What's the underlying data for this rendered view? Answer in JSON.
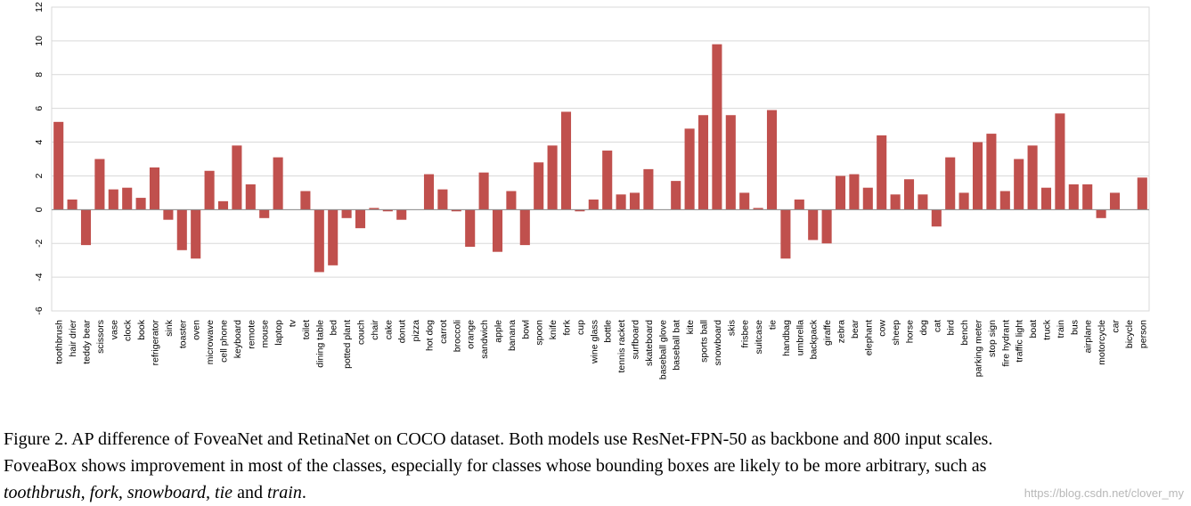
{
  "chart_data": {
    "type": "bar",
    "title": "",
    "xlabel": "",
    "ylabel": "",
    "ylim": [
      -6,
      12
    ],
    "yticks": [
      -6,
      -4,
      -2,
      0,
      2,
      4,
      6,
      8,
      10,
      12
    ],
    "grid": "horizontal",
    "bar_color": "#c0504d",
    "categories": [
      "toothbrush",
      "hair drier",
      "teddy bear",
      "scissors",
      "vase",
      "clock",
      "book",
      "refrigerator",
      "sink",
      "toaster",
      "oven",
      "microwave",
      "cell phone",
      "keyboard",
      "remote",
      "mouse",
      "laptop",
      "tv",
      "toilet",
      "dining table",
      "bed",
      "potted plant",
      "couch",
      "chair",
      "cake",
      "donut",
      "pizza",
      "hot dog",
      "carrot",
      "broccoli",
      "orange",
      "sandwich",
      "apple",
      "banana",
      "bowl",
      "spoon",
      "knife",
      "fork",
      "cup",
      "wine glass",
      "bottle",
      "tennis racket",
      "surfboard",
      "skateboard",
      "baseball glove",
      "baseball bat",
      "kite",
      "sports ball",
      "snowboard",
      "skis",
      "frisbee",
      "suitcase",
      "tie",
      "handbag",
      "umbrella",
      "backpack",
      "giraffe",
      "zebra",
      "bear",
      "elephant",
      "cow",
      "sheep",
      "horse",
      "dog",
      "cat",
      "bird",
      "bench",
      "parking meter",
      "stop sign",
      "fire hydrant",
      "traffic light",
      "boat",
      "truck",
      "train",
      "bus",
      "airplane",
      "motorcycle",
      "car",
      "bicycle",
      "person"
    ],
    "values": [
      5.2,
      0.6,
      -2.1,
      3.0,
      1.2,
      1.3,
      0.7,
      2.5,
      -0.6,
      -2.4,
      -2.9,
      2.3,
      0.5,
      3.8,
      1.5,
      -0.5,
      3.1,
      0.0,
      1.1,
      -3.7,
      -3.3,
      -0.5,
      -1.1,
      0.1,
      -0.1,
      -0.6,
      0.0,
      2.1,
      1.2,
      -0.1,
      -2.2,
      2.2,
      -2.5,
      1.1,
      -2.1,
      2.8,
      3.8,
      5.8,
      -0.1,
      0.6,
      3.5,
      0.9,
      1.0,
      2.4,
      0.0,
      1.7,
      4.8,
      5.6,
      9.8,
      5.6,
      1.0,
      0.1,
      5.9,
      -2.9,
      0.6,
      -1.8,
      -2.0,
      2.0,
      2.1,
      1.3,
      4.4,
      0.9,
      1.8,
      0.9,
      -1.0,
      3.1,
      1.0,
      4.0,
      4.5,
      1.1,
      3.0,
      3.8,
      1.3,
      5.7,
      1.5,
      1.5,
      -0.5,
      1.0,
      0.0,
      1.9
    ]
  },
  "caption": {
    "line1": "Figure 2. AP difference of FoveaNet and RetinaNet on COCO dataset. Both models use ResNet-FPN-50 as backbone and 800 input scales.",
    "line2": "FoveaBox shows improvement in most of the classes, especially for classes whose bounding boxes are likely to be more arbitrary, such as",
    "italic_1": "toothbrush, fork, snowboard, tie",
    "connector": " and ",
    "italic_2": "train",
    "end": "."
  },
  "watermark": "https://blog.csdn.net/clover_my"
}
